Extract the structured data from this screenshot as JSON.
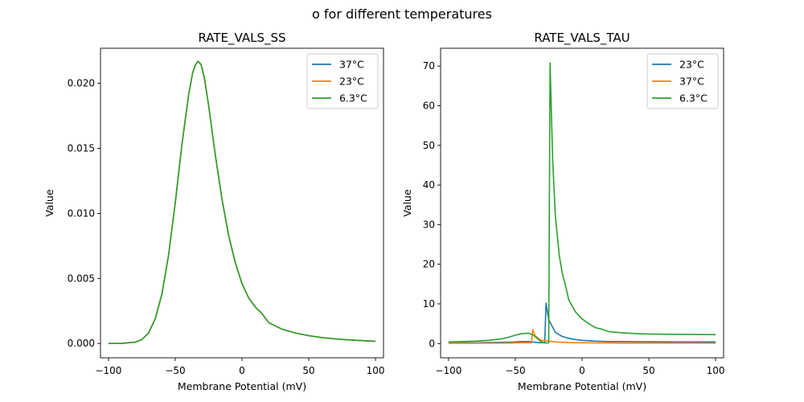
{
  "suptitle": "o for different temperatures",
  "chart_data": [
    {
      "type": "line",
      "title": "RATE_VALS_SS",
      "xlabel": "Membrane Potential (mV)",
      "ylabel": "Value",
      "xlim": [
        -106,
        106
      ],
      "ylim": [
        -0.0011,
        0.0227
      ],
      "xticks": [
        -100,
        -50,
        0,
        50,
        100
      ],
      "xtick_labels": [
        "−100",
        "−50",
        "0",
        "50",
        "100"
      ],
      "yticks": [
        0,
        0.005,
        0.01,
        0.015,
        0.02
      ],
      "ytick_labels": [
        "0.000",
        "0.005",
        "0.010",
        "0.015",
        "0.020"
      ],
      "grid": false,
      "legend_position": "top-right",
      "x": [
        -100,
        -90,
        -80,
        -75,
        -70,
        -65,
        -60,
        -55,
        -50,
        -45,
        -40,
        -37,
        -35,
        -33,
        -32,
        -31,
        -30,
        -28,
        -25,
        -20,
        -15,
        -10,
        -5,
        0,
        5,
        10,
        15,
        20,
        30,
        40,
        50,
        60,
        70,
        80,
        90,
        100
      ],
      "series": [
        {
          "name": "37°C",
          "color": "#1f77b4",
          "values": [
            0.0,
            1e-05,
            0.0001,
            0.0003,
            0.0008,
            0.0019,
            0.0038,
            0.0068,
            0.0108,
            0.0153,
            0.0191,
            0.0208,
            0.0214,
            0.0217,
            0.0216,
            0.0215,
            0.0212,
            0.0203,
            0.0183,
            0.0145,
            0.0111,
            0.0083,
            0.0062,
            0.0046,
            0.0035,
            0.0028,
            0.0023,
            0.0016,
            0.0011,
            0.0008,
            0.0006,
            0.00045,
            0.00035,
            0.00028,
            0.00022,
            0.00017
          ]
        },
        {
          "name": "23°C",
          "color": "#ff7f0e",
          "values": [
            0.0,
            1e-05,
            0.0001,
            0.0003,
            0.0008,
            0.0019,
            0.0038,
            0.0068,
            0.0108,
            0.0153,
            0.0191,
            0.0208,
            0.0214,
            0.0217,
            0.0216,
            0.0215,
            0.0212,
            0.0203,
            0.0183,
            0.0145,
            0.0111,
            0.0083,
            0.0062,
            0.0046,
            0.0035,
            0.0028,
            0.0023,
            0.0016,
            0.0011,
            0.0008,
            0.0006,
            0.00045,
            0.00035,
            0.00028,
            0.00022,
            0.00017
          ]
        },
        {
          "name": "6.3°C",
          "color": "#2ca02c",
          "values": [
            0.0,
            1e-05,
            0.0001,
            0.0003,
            0.0008,
            0.0019,
            0.0038,
            0.0068,
            0.0108,
            0.0153,
            0.0191,
            0.0208,
            0.0214,
            0.0217,
            0.0216,
            0.0215,
            0.0212,
            0.0203,
            0.0183,
            0.0145,
            0.0111,
            0.0083,
            0.0062,
            0.0046,
            0.0035,
            0.0028,
            0.0023,
            0.0016,
            0.0011,
            0.0008,
            0.0006,
            0.00045,
            0.00035,
            0.00028,
            0.00022,
            0.00017
          ]
        }
      ]
    },
    {
      "type": "line",
      "title": "RATE_VALS_TAU",
      "xlabel": "Membrane Potential (mV)",
      "ylabel": "Value",
      "xlim": [
        -106,
        106
      ],
      "ylim": [
        -3.6,
        74.5
      ],
      "xticks": [
        -100,
        -50,
        0,
        50,
        100
      ],
      "xtick_labels": [
        "−100",
        "−50",
        "0",
        "50",
        "100"
      ],
      "yticks": [
        0,
        10,
        20,
        30,
        40,
        50,
        60,
        70
      ],
      "ytick_labels": [
        "0",
        "10",
        "20",
        "30",
        "40",
        "50",
        "60",
        "70"
      ],
      "grid": false,
      "legend_position": "top-right",
      "series": [
        {
          "name": "23°C",
          "color": "#1f77b4",
          "x": [
            -100,
            -80,
            -60,
            -50,
            -45,
            -40,
            -35,
            -31,
            -28,
            -27,
            -25,
            -20,
            -15,
            -10,
            -5,
            0,
            10,
            20,
            30,
            50,
            70,
            100
          ],
          "values": [
            0.15,
            0.2,
            0.3,
            0.4,
            0.5,
            0.5,
            0.3,
            0.2,
            0.3,
            10.2,
            6.0,
            2.8,
            1.8,
            1.3,
            1.0,
            0.8,
            0.6,
            0.5,
            0.5,
            0.45,
            0.4,
            0.4
          ]
        },
        {
          "name": "37°C",
          "color": "#ff7f0e",
          "x": [
            -100,
            -80,
            -60,
            -50,
            -45,
            -40,
            -38,
            -37,
            -35,
            -32,
            -30,
            -25,
            -20,
            -10,
            0,
            10,
            30,
            50,
            100
          ],
          "values": [
            0.05,
            0.06,
            0.1,
            0.15,
            0.18,
            0.2,
            0.15,
            3.5,
            1.9,
            1.1,
            0.8,
            0.6,
            0.4,
            0.25,
            0.2,
            0.15,
            0.12,
            0.11,
            0.1
          ]
        },
        {
          "name": "6.3°C",
          "color": "#2ca02c",
          "x": [
            -100,
            -90,
            -80,
            -70,
            -60,
            -55,
            -50,
            -45,
            -40,
            -37,
            -35,
            -32,
            -29,
            -27,
            -25,
            -24,
            -22,
            -20,
            -17,
            -15,
            -12,
            -10,
            -5,
            0,
            5,
            10,
            15,
            20,
            30,
            40,
            50,
            60,
            80,
            100
          ],
          "values": [
            0.4,
            0.5,
            0.6,
            0.8,
            1.2,
            1.6,
            2.1,
            2.5,
            2.6,
            2.2,
            1.7,
            0.8,
            0.2,
            0.1,
            0.2,
            70.8,
            46,
            32,
            22,
            18,
            14,
            11,
            8,
            6.2,
            5.0,
            4.0,
            3.6,
            3.0,
            2.7,
            2.5,
            2.4,
            2.35,
            2.3,
            2.25
          ]
        }
      ]
    }
  ]
}
